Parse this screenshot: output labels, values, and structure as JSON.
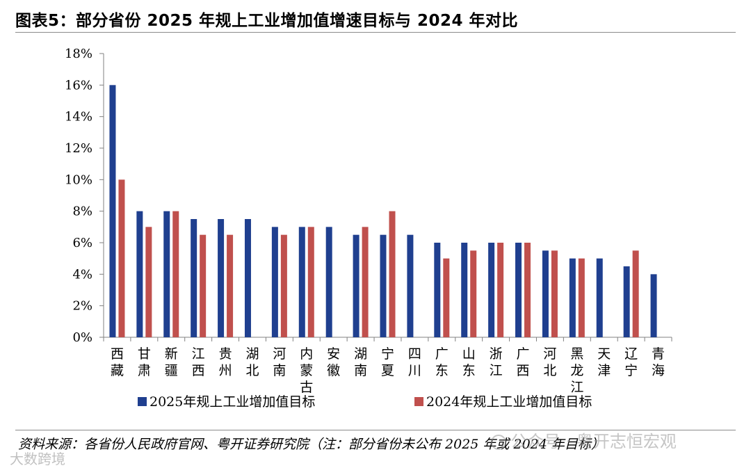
{
  "header": {
    "title": "图表5：部分省份 2025 年规上工业增加值增速目标与 2024 年对比"
  },
  "chart_data": {
    "type": "bar",
    "title": "部分省份 2025 年规上工业增加值增速目标与 2024 年对比",
    "categories": [
      "西藏",
      "甘肃",
      "新疆",
      "江西",
      "贵州",
      "湖北",
      "河南",
      "内蒙古",
      "安徽",
      "湖南",
      "宁夏",
      "四川",
      "广东",
      "山东",
      "浙江",
      "广西",
      "河北",
      "黑龙江",
      "天津",
      "辽宁",
      "青海"
    ],
    "series": [
      {
        "name": "2025年规上工业增加值目标",
        "color": "#1f3f8f",
        "values": [
          16,
          8,
          8,
          7.5,
          7.5,
          7.5,
          7,
          7,
          7,
          6.5,
          6.5,
          6.5,
          6,
          6,
          6,
          6,
          5.5,
          5,
          5,
          4.5,
          4
        ]
      },
      {
        "name": "2024年规上工业增加值目标",
        "color": "#c0504d",
        "values": [
          10,
          7,
          8,
          6.5,
          6.5,
          null,
          6.5,
          7,
          null,
          7,
          8,
          null,
          5,
          5.5,
          6,
          6,
          5.5,
          5,
          null,
          5.5,
          null
        ]
      }
    ],
    "ylim": [
      0,
      18
    ],
    "yticks": [
      "0%",
      "2%",
      "4%",
      "6%",
      "8%",
      "10%",
      "12%",
      "14%",
      "16%",
      "18%"
    ],
    "ytick_values": [
      0,
      2,
      4,
      6,
      8,
      10,
      12,
      14,
      16,
      18
    ],
    "xlabel": "",
    "ylabel": "",
    "grid": false,
    "legend_position": "bottom"
  },
  "footer": {
    "source": "资料来源：各省份人民政府官网、粤开证券研究院（注：部分省份未公布 2025 年或 2024 年目标）",
    "watermark": "公众号 · 粤开志恒宏观",
    "watermark2": "大数跨境"
  }
}
